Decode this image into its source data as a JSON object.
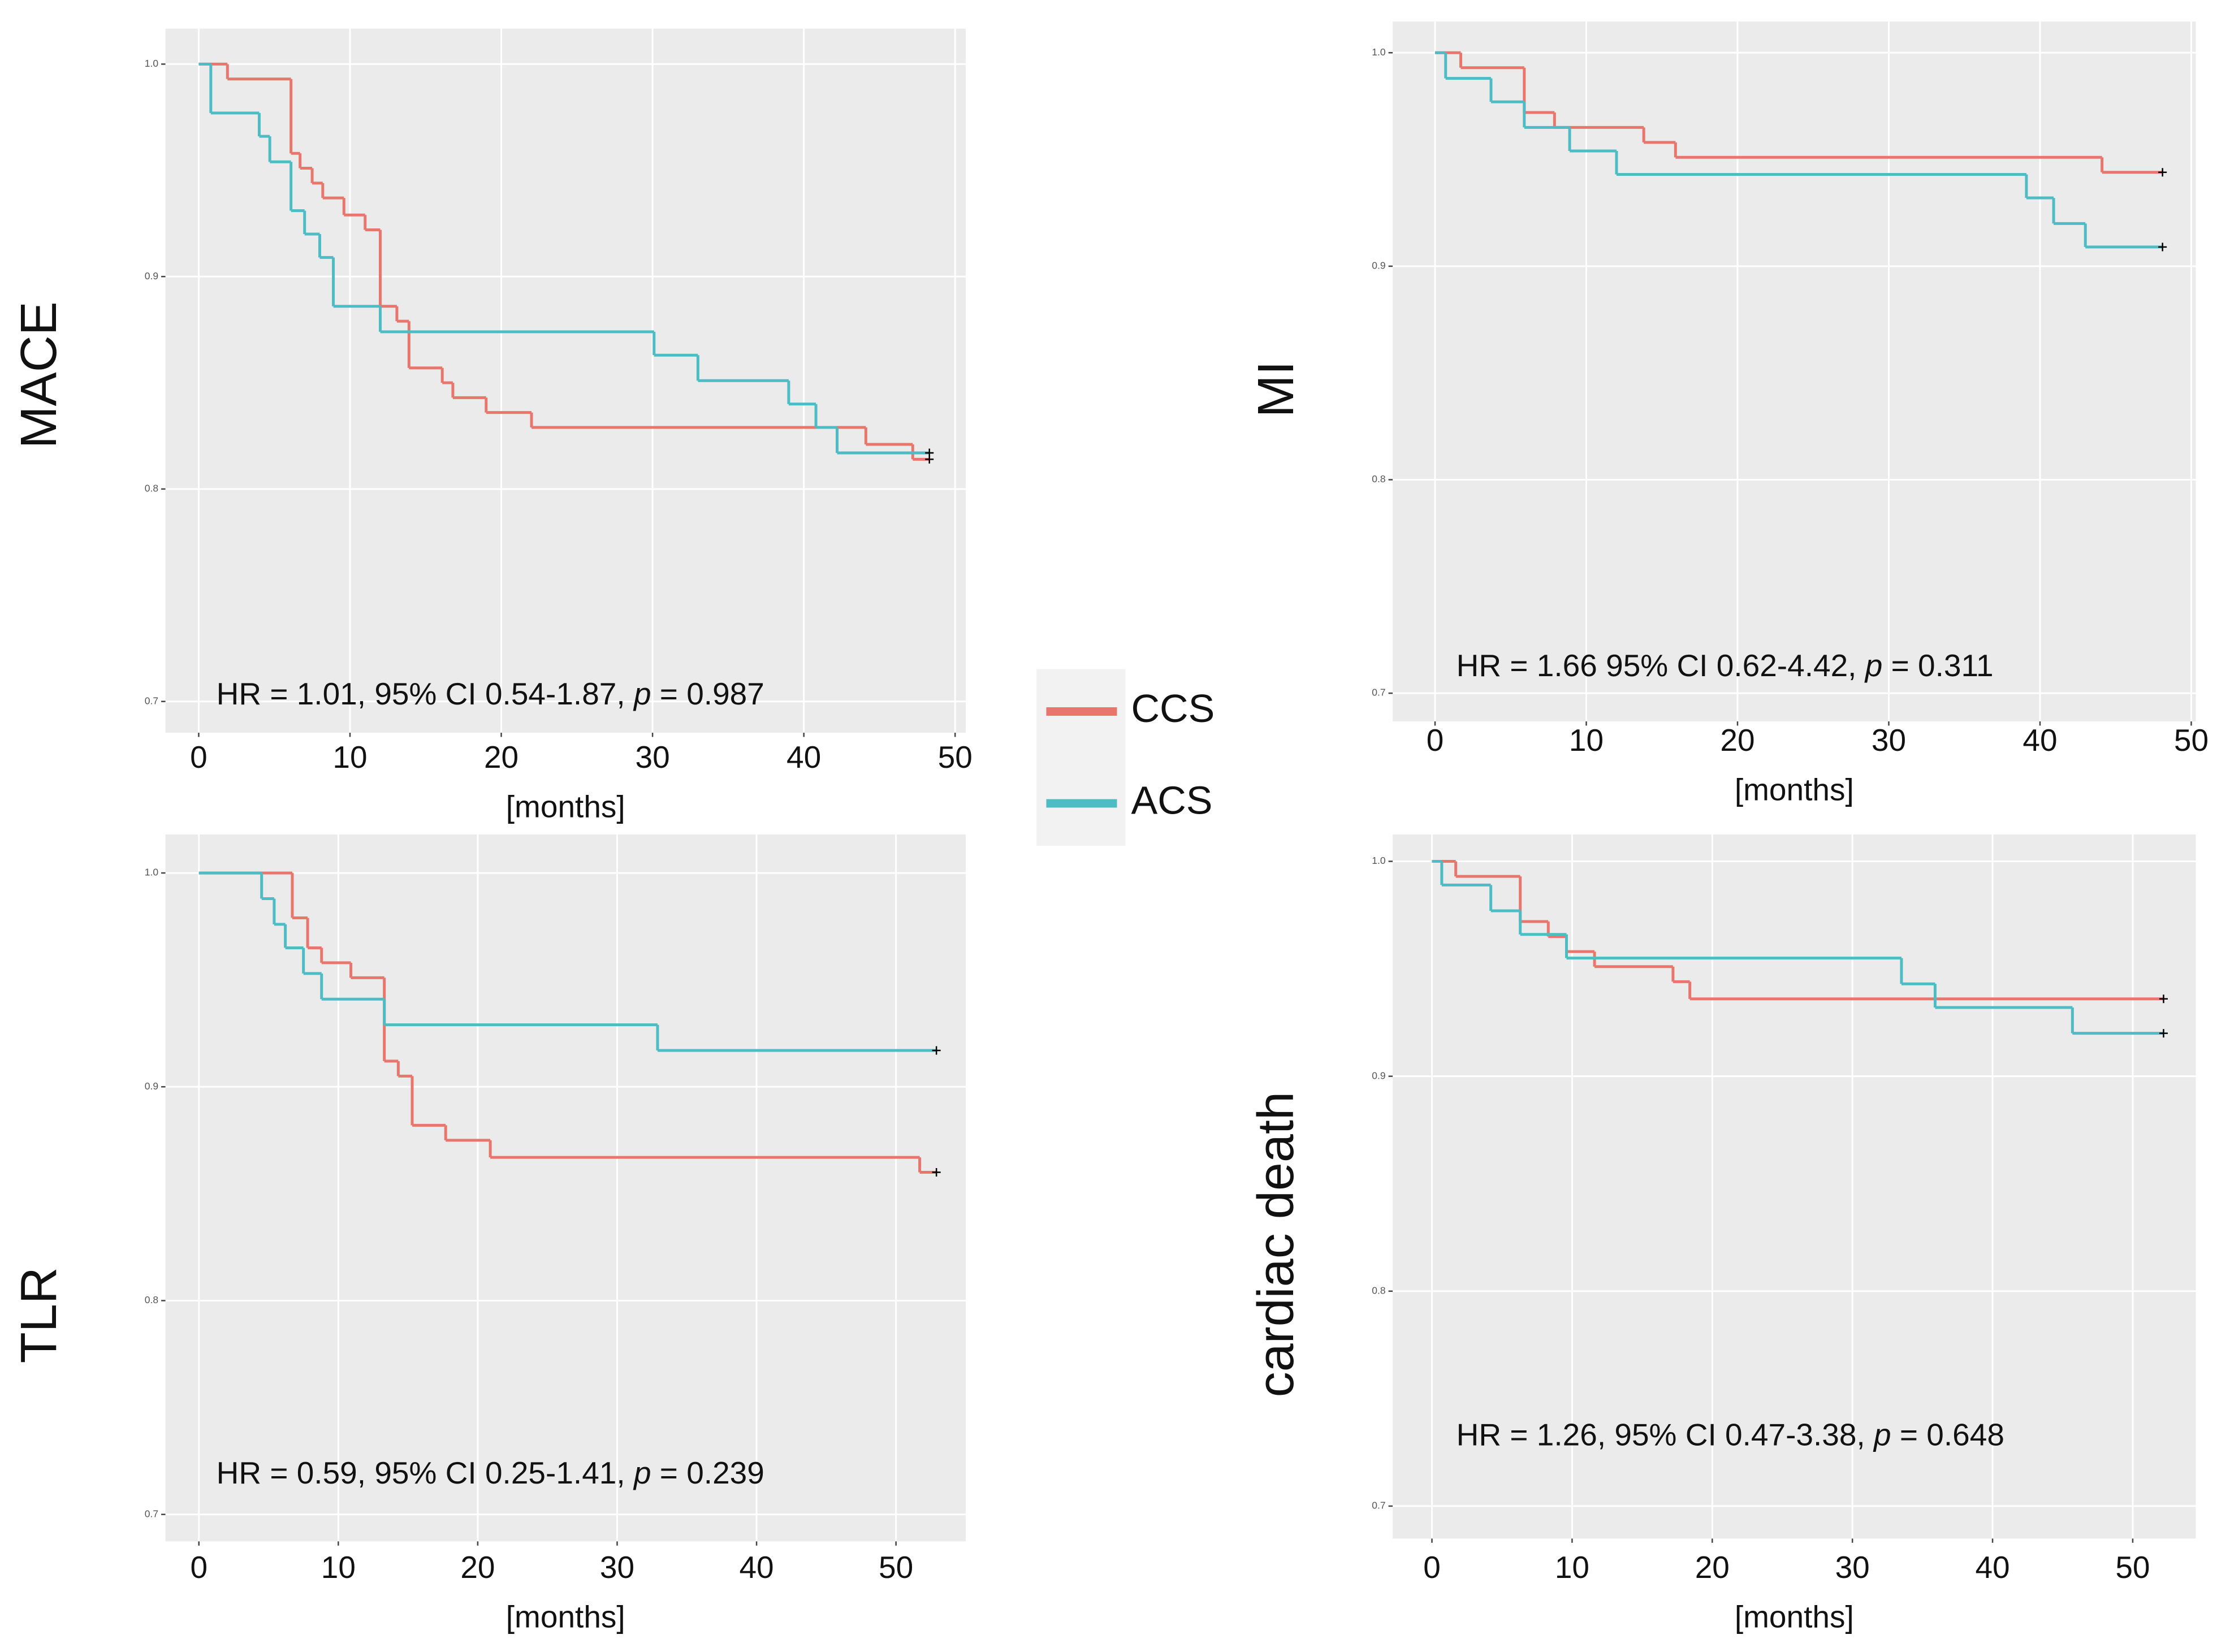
{
  "legend": [
    {
      "name": "CCS",
      "color": "#e8766d"
    },
    {
      "name": "ACS",
      "color": "#4dbcc4"
    }
  ],
  "chart_data": [
    {
      "type": "step",
      "title": "MACE",
      "x_label": "[months]",
      "annotation": [
        "HR = 1.01, 95% CI 0.54-1.87, ",
        "p",
        " = 0.987"
      ],
      "xlim": [
        -2.2,
        50.7
      ],
      "xticks": [
        0,
        10,
        20,
        30,
        40,
        50
      ],
      "ylim": [
        0.6853,
        1.0167
      ],
      "yticks": [
        0.7,
        0.8,
        0.9,
        {
          "value": 1,
          "label": "1.0"
        }
      ],
      "grid": true,
      "series": [
        {
          "color": "#e8766d",
          "x": [
            0,
            1.9,
            6.1,
            6.7,
            7.5,
            8.2,
            9.6,
            11,
            12,
            13.1,
            13.9,
            16.1,
            16.8,
            19,
            22,
            44.1,
            47.2,
            48.3
          ],
          "values": [
            1,
            0.993,
            0.958,
            0.951,
            0.944,
            0.937,
            0.929,
            0.922,
            0.886,
            0.879,
            0.857,
            0.85,
            0.843,
            0.836,
            0.829,
            0.821,
            0.814,
            0.814
          ]
        },
        {
          "color": "#4dbcc4",
          "x": [
            0,
            0.8,
            4,
            4.7,
            6.1,
            7,
            8,
            8.9,
            12,
            30.1,
            33,
            39,
            40.8,
            42.2,
            48.3
          ],
          "values": [
            1,
            0.977,
            0.966,
            0.954,
            0.931,
            0.92,
            0.909,
            0.886,
            0.874,
            0.863,
            0.851,
            0.84,
            0.829,
            0.817,
            0.817
          ]
        }
      ]
    },
    {
      "type": "step",
      "title": "MI",
      "x_label": "[months]",
      "annotation": [
        "HR = 1.66 95% CI 0.62-4.42, ",
        "p",
        " = 0.311"
      ],
      "xlim": [
        -2.8,
        50.3
      ],
      "xticks": [
        0,
        10,
        20,
        30,
        40,
        50
      ],
      "ylim": [
        0.6868,
        1.0146
      ],
      "yticks": [
        0.7,
        0.8,
        0.9,
        {
          "value": 1,
          "label": "1.0"
        }
      ],
      "grid": true,
      "series": [
        {
          "color": "#e8766d",
          "x": [
            0,
            1.7,
            5.9,
            7.9,
            13.8,
            15.9,
            44.1,
            48.1
          ],
          "values": [
            1,
            0.993,
            0.972,
            0.965,
            0.958,
            0.951,
            0.944,
            0.944
          ]
        },
        {
          "color": "#4dbcc4",
          "x": [
            0,
            0.7,
            3.7,
            5.9,
            8.9,
            12,
            39.1,
            40.9,
            43,
            48.1
          ],
          "values": [
            1,
            0.988,
            0.977,
            0.965,
            0.954,
            0.943,
            0.932,
            0.92,
            0.909,
            0.909
          ]
        }
      ]
    },
    {
      "type": "step",
      "title": "TLR",
      "x_label": "[months]",
      "annotation": [
        "HR = 0.59, 95% CI 0.25-1.41, ",
        "p",
        " = 0.239"
      ],
      "xlim": [
        -2.4,
        55
      ],
      "xticks": [
        0,
        10,
        20,
        30,
        40,
        50
      ],
      "ylim": [
        0.6874,
        1.018
      ],
      "yticks": [
        0.7,
        0.8,
        0.9,
        {
          "value": 1,
          "label": "1.0"
        }
      ],
      "grid": true,
      "series": [
        {
          "color": "#e8766d",
          "x": [
            0,
            6.7,
            7.8,
            8.8,
            10.9,
            13.3,
            14.3,
            15.3,
            17.7,
            20.9,
            51.7,
            52.9
          ],
          "values": [
            1,
            0.979,
            0.965,
            0.958,
            0.951,
            0.912,
            0.905,
            0.882,
            0.875,
            0.867,
            0.86,
            0.86
          ]
        },
        {
          "color": "#4dbcc4",
          "x": [
            0,
            4.5,
            5.4,
            6.2,
            7.5,
            8.8,
            13.3,
            32.9,
            52.9
          ],
          "values": [
            1,
            0.988,
            0.976,
            0.965,
            0.953,
            0.941,
            0.929,
            0.917,
            0.917
          ]
        }
      ]
    },
    {
      "type": "step",
      "title": "cardiac death",
      "x_label": "[months]",
      "annotation": [
        "HR = 1.26, 95% CI 0.47-3.38, ",
        "p",
        " = 0.648"
      ],
      "xlim": [
        -2.8,
        54.5
      ],
      "xticks": [
        0,
        10,
        20,
        30,
        40,
        50
      ],
      "ylim": [
        0.6849,
        1.0125
      ],
      "yticks": [
        0.7,
        0.8,
        0.9,
        {
          "value": 1,
          "label": "1.0"
        }
      ],
      "grid": true,
      "series": [
        {
          "color": "#e8766d",
          "x": [
            0,
            1.7,
            6.3,
            8.3,
            9.6,
            11.6,
            17.2,
            18.4,
            52.2
          ],
          "values": [
            1,
            0.993,
            0.972,
            0.965,
            0.958,
            0.951,
            0.944,
            0.936,
            0.936
          ]
        },
        {
          "color": "#4dbcc4",
          "x": [
            0,
            0.7,
            4.2,
            6.3,
            9.6,
            33.5,
            35.9,
            45.7,
            52.2
          ],
          "values": [
            1,
            0.989,
            0.977,
            0.966,
            0.955,
            0.943,
            0.932,
            0.92,
            0.92
          ]
        }
      ]
    }
  ]
}
